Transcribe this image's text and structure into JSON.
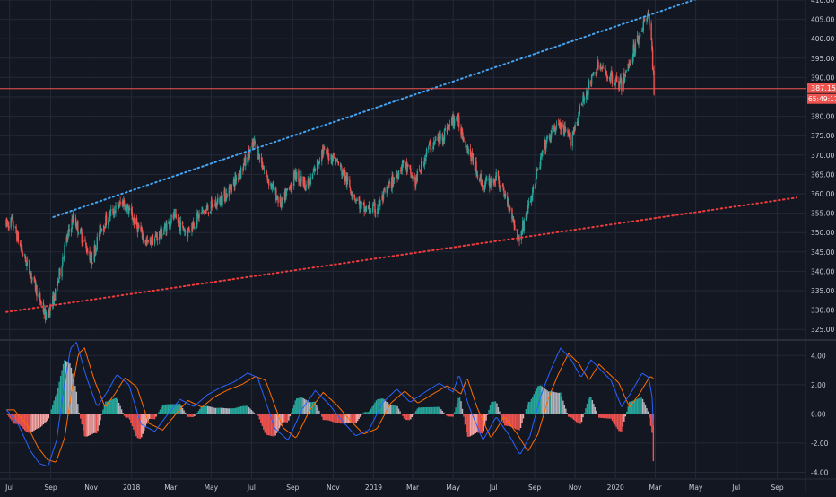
{
  "chart_data": [
    {
      "type": "candlestick",
      "panel": "price",
      "title": "",
      "xlabel": "",
      "ylabel": "",
      "ylim": [
        322.5,
        410
      ],
      "y_ticks": [
        "325.00",
        "330.00",
        "335.00",
        "340.00",
        "345.00",
        "350.00",
        "355.00",
        "360.00",
        "365.00",
        "370.00",
        "375.00",
        "380.00",
        "385.00",
        "390.00",
        "395.00",
        "400.00",
        "405.00",
        "410.00"
      ],
      "x_tick_labels": [
        "Jul",
        "Sep",
        "Nov",
        "2018",
        "Mar",
        "May",
        "Jul",
        "Sep",
        "Nov",
        "2019",
        "Mar",
        "May",
        "Jul",
        "Sep",
        "Nov",
        "2020",
        "Mar",
        "May",
        "Jul",
        "Sep"
      ],
      "price_path": [
        [
          "2017-06-26",
          352
        ],
        [
          "2017-07-05",
          353
        ],
        [
          "2017-07-20",
          345
        ],
        [
          "2017-08-05",
          338
        ],
        [
          "2017-08-25",
          328
        ],
        [
          "2017-09-08",
          334
        ],
        [
          "2017-09-22",
          346
        ],
        [
          "2017-10-05",
          354
        ],
        [
          "2017-10-20",
          348
        ],
        [
          "2017-11-02",
          343
        ],
        [
          "2017-11-15",
          351
        ],
        [
          "2017-12-01",
          355
        ],
        [
          "2017-12-20",
          358
        ],
        [
          "2018-01-05",
          353
        ],
        [
          "2018-01-25",
          347
        ],
        [
          "2018-02-15",
          350
        ],
        [
          "2018-03-05",
          354
        ],
        [
          "2018-03-25",
          350
        ],
        [
          "2018-04-15",
          355
        ],
        [
          "2018-05-05",
          357
        ],
        [
          "2018-05-25",
          360
        ],
        [
          "2018-06-15",
          366
        ],
        [
          "2018-07-05",
          373
        ],
        [
          "2018-07-25",
          364
        ],
        [
          "2018-08-15",
          357
        ],
        [
          "2018-09-05",
          365
        ],
        [
          "2018-09-25",
          362
        ],
        [
          "2018-10-15",
          371
        ],
        [
          "2018-11-05",
          369
        ],
        [
          "2018-11-25",
          362
        ],
        [
          "2018-12-15",
          356
        ],
        [
          "2019-01-05",
          356
        ],
        [
          "2019-01-25",
          362
        ],
        [
          "2019-02-15",
          368
        ],
        [
          "2019-03-05",
          363
        ],
        [
          "2019-03-25",
          372
        ],
        [
          "2019-04-15",
          375
        ],
        [
          "2019-05-05",
          380
        ],
        [
          "2019-05-25",
          371
        ],
        [
          "2019-06-15",
          362
        ],
        [
          "2019-07-05",
          364
        ],
        [
          "2019-07-25",
          357
        ],
        [
          "2019-08-08",
          348
        ],
        [
          "2019-08-25",
          358
        ],
        [
          "2019-09-15",
          372
        ],
        [
          "2019-10-05",
          378
        ],
        [
          "2019-10-25",
          374
        ],
        [
          "2019-11-15",
          385
        ],
        [
          "2019-12-05",
          393
        ],
        [
          "2019-12-25",
          390
        ],
        [
          "2020-01-10",
          388
        ],
        [
          "2020-01-28",
          397
        ],
        [
          "2020-02-12",
          404
        ],
        [
          "2020-02-20",
          406
        ],
        [
          "2020-02-24",
          401
        ],
        [
          "2020-02-26",
          393
        ],
        [
          "2020-02-28",
          387.15
        ]
      ],
      "last_price": "387.15",
      "countdown": "65:49:17",
      "trendlines": [
        {
          "name": "upper-channel",
          "color": "#42a5f5",
          "from": [
            "2017-09-05",
            354
          ],
          "to": [
            "2020-05-15",
            411
          ]
        },
        {
          "name": "lower-channel",
          "color": "#ef3b3b",
          "from": [
            "2017-06-26",
            329.5
          ],
          "to": [
            "2020-09-30",
            359
          ]
        }
      ],
      "hline": {
        "value": 387.15,
        "color": "#ef5350"
      }
    },
    {
      "type": "macd",
      "panel": "indicator",
      "ylim": [
        -4.4,
        5.0
      ],
      "y_ticks": [
        "4.00",
        "2.00",
        "0.00",
        "-2.00",
        "-4.00"
      ],
      "macd_path": [
        [
          "2017-06-26",
          0.3
        ],
        [
          "2017-07-15",
          -0.8
        ],
        [
          "2017-08-01",
          -2.5
        ],
        [
          "2017-08-15",
          -3.4
        ],
        [
          "2017-08-28",
          -3.6
        ],
        [
          "2017-09-10",
          -1.8
        ],
        [
          "2017-09-20",
          1.5
        ],
        [
          "2017-10-01",
          4.5
        ],
        [
          "2017-10-10",
          4.9
        ],
        [
          "2017-10-25",
          2.5
        ],
        [
          "2017-11-10",
          0.5
        ],
        [
          "2017-11-25",
          1.5
        ],
        [
          "2017-12-10",
          2.7
        ],
        [
          "2017-12-28",
          2.0
        ],
        [
          "2018-01-15",
          -0.7
        ],
        [
          "2018-02-05",
          -1.2
        ],
        [
          "2018-02-25",
          0.0
        ],
        [
          "2018-03-15",
          1.0
        ],
        [
          "2018-04-05",
          0.5
        ],
        [
          "2018-04-25",
          1.3
        ],
        [
          "2018-05-15",
          1.8
        ],
        [
          "2018-06-05",
          2.2
        ],
        [
          "2018-06-25",
          2.8
        ],
        [
          "2018-07-10",
          2.5
        ],
        [
          "2018-08-05",
          -1.0
        ],
        [
          "2018-08-25",
          -1.8
        ],
        [
          "2018-09-15",
          0.3
        ],
        [
          "2018-10-05",
          1.6
        ],
        [
          "2018-10-25",
          0.7
        ],
        [
          "2018-11-15",
          -0.5
        ],
        [
          "2018-12-05",
          -1.5
        ],
        [
          "2018-12-25",
          -1.1
        ],
        [
          "2019-01-15",
          0.8
        ],
        [
          "2019-02-05",
          1.7
        ],
        [
          "2019-02-25",
          0.8
        ],
        [
          "2019-03-20",
          1.5
        ],
        [
          "2019-04-10",
          2.1
        ],
        [
          "2019-05-01",
          1.5
        ],
        [
          "2019-05-10",
          2.7
        ],
        [
          "2019-05-25",
          0.5
        ],
        [
          "2019-06-15",
          -1.8
        ],
        [
          "2019-07-05",
          -0.2
        ],
        [
          "2019-07-25",
          -1.5
        ],
        [
          "2019-08-10",
          -2.8
        ],
        [
          "2019-08-25",
          -1.5
        ],
        [
          "2019-09-10",
          1.2
        ],
        [
          "2019-09-25",
          3.0
        ],
        [
          "2019-10-10",
          4.5
        ],
        [
          "2019-10-25",
          3.8
        ],
        [
          "2019-11-10",
          2.5
        ],
        [
          "2019-11-25",
          3.7
        ],
        [
          "2019-12-10",
          3.0
        ],
        [
          "2019-12-25",
          2.3
        ],
        [
          "2020-01-10",
          0.5
        ],
        [
          "2020-01-25",
          1.5
        ],
        [
          "2020-02-10",
          2.8
        ],
        [
          "2020-02-20",
          2.5
        ],
        [
          "2020-02-25",
          1.2
        ],
        [
          "2020-02-28",
          -1.8
        ]
      ],
      "signal_lag_days": 12
    }
  ],
  "colors": {
    "background": "#131722",
    "grid": "#242937",
    "axis_text": "#c9cbd4",
    "candle_up": "#26a69a",
    "candle_down": "#ef5350",
    "macd": "#2962ff",
    "signal": "#ff6d00",
    "hist_up": "#26a69a",
    "hist_down": "#ef5350",
    "hist_neutral": "#b2b5be"
  }
}
